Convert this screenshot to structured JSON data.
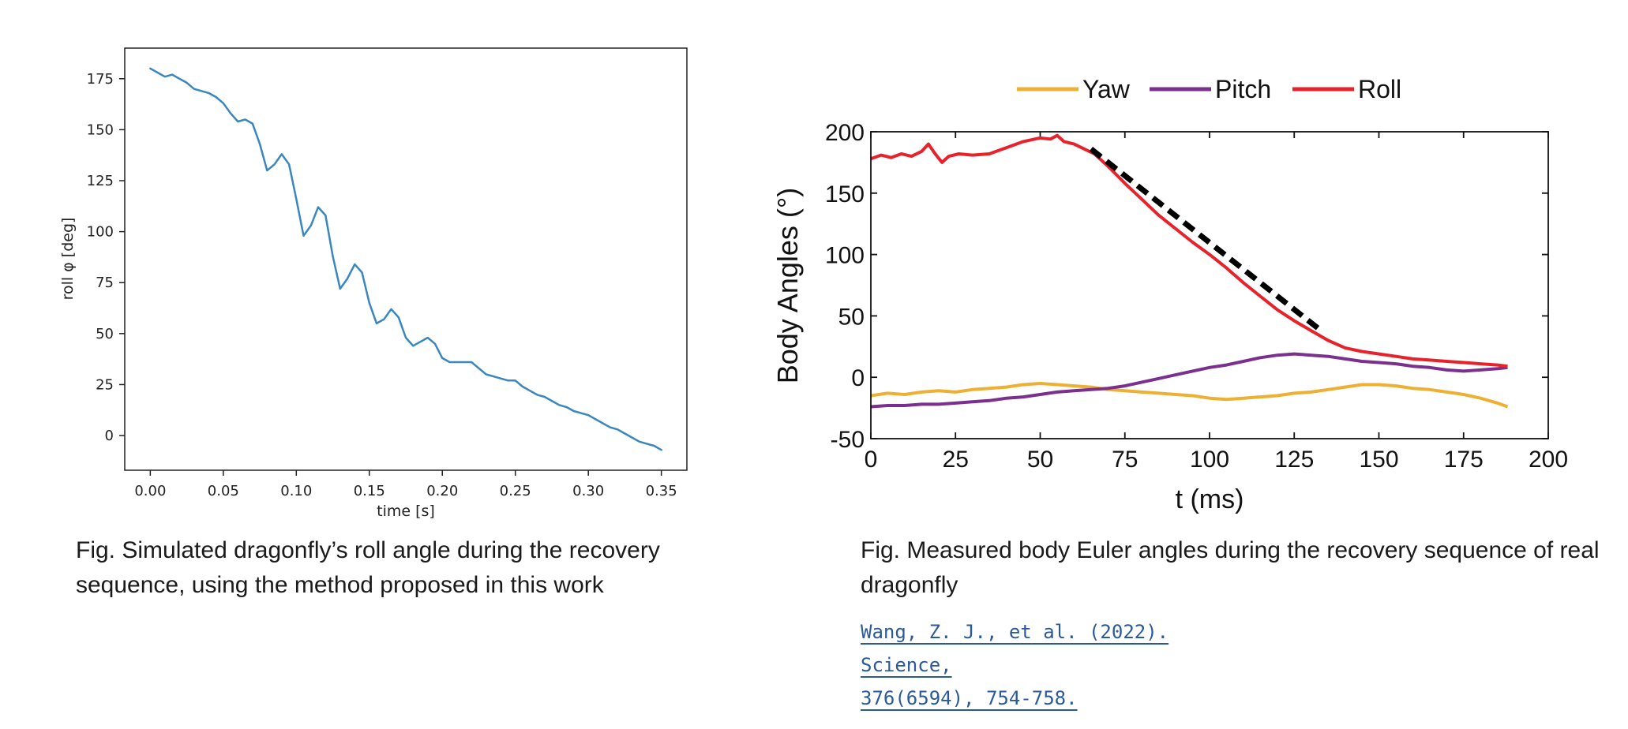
{
  "chart_data": [
    {
      "type": "line",
      "title": "",
      "xlabel": "time [s]",
      "ylabel": "roll φ [deg]",
      "xlim": [
        -0.0175,
        0.3675
      ],
      "ylim": [
        -17,
        190
      ],
      "xticks": [
        "0.00",
        "0.05",
        "0.10",
        "0.15",
        "0.20",
        "0.25",
        "0.30",
        "0.35"
      ],
      "yticks": [
        "0",
        "25",
        "50",
        "75",
        "100",
        "125",
        "150",
        "175"
      ],
      "grid": false,
      "legend": "none",
      "line_color": "#3a87c0",
      "series": [
        {
          "x": [
            0.0,
            0.005,
            0.01,
            0.015,
            0.02,
            0.025,
            0.03,
            0.035,
            0.04,
            0.045,
            0.05,
            0.055,
            0.06,
            0.065,
            0.07,
            0.075,
            0.08,
            0.085,
            0.09,
            0.095,
            0.1,
            0.105,
            0.11,
            0.115,
            0.12,
            0.125,
            0.13,
            0.135,
            0.14,
            0.145,
            0.15,
            0.155,
            0.16,
            0.165,
            0.17,
            0.175,
            0.18,
            0.185,
            0.19,
            0.195,
            0.2,
            0.205,
            0.21,
            0.215,
            0.22,
            0.225,
            0.23,
            0.235,
            0.24,
            0.245,
            0.25,
            0.255,
            0.26,
            0.265,
            0.27,
            0.275,
            0.28,
            0.285,
            0.29,
            0.295,
            0.3,
            0.305,
            0.31,
            0.315,
            0.32,
            0.325,
            0.33,
            0.335,
            0.34,
            0.345,
            0.35
          ],
          "values": [
            180,
            178,
            176,
            177,
            175,
            173,
            170,
            169,
            168,
            166,
            163,
            158,
            154,
            155,
            153,
            143,
            130,
            133,
            138,
            133,
            116,
            98,
            103,
            112,
            108,
            88,
            72,
            77,
            84,
            80,
            65,
            55,
            57,
            62,
            58,
            48,
            44,
            46,
            48,
            45,
            38,
            36,
            36,
            36,
            36,
            33,
            30,
            29,
            28,
            27,
            27,
            24,
            22,
            20,
            19,
            17,
            15,
            14,
            12,
            11,
            10,
            8,
            6,
            4,
            3,
            1,
            -1,
            -3,
            -4,
            -5,
            -7
          ]
        }
      ]
    },
    {
      "type": "line",
      "title": "",
      "xlabel": "t (ms)",
      "ylabel": "Body Angles (°)",
      "xlim": [
        0,
        200
      ],
      "ylim": [
        -50,
        200
      ],
      "xticks": [
        "0",
        "25",
        "50",
        "75",
        "100",
        "125",
        "150",
        "175",
        "200"
      ],
      "yticks": [
        "-50",
        "0",
        "50",
        "100",
        "150",
        "200"
      ],
      "grid": false,
      "legend": "top",
      "series": [
        {
          "name": "Yaw",
          "color": "#eeb033",
          "x": [
            0,
            5,
            10,
            15,
            20,
            25,
            30,
            35,
            40,
            45,
            50,
            55,
            60,
            65,
            70,
            75,
            80,
            85,
            90,
            95,
            100,
            105,
            110,
            115,
            120,
            125,
            130,
            135,
            140,
            145,
            150,
            155,
            160,
            165,
            170,
            175,
            180,
            185,
            188
          ],
          "values": [
            -15,
            -13,
            -14,
            -12,
            -11,
            -12,
            -10,
            -9,
            -8,
            -6,
            -5,
            -6,
            -7,
            -8,
            -10,
            -11,
            -12,
            -13,
            -14,
            -15,
            -17,
            -18,
            -17,
            -16,
            -15,
            -13,
            -12,
            -10,
            -8,
            -6,
            -6,
            -7,
            -9,
            -10,
            -12,
            -14,
            -17,
            -21,
            -24
          ]
        },
        {
          "name": "Pitch",
          "color": "#7b2f8e",
          "x": [
            0,
            5,
            10,
            15,
            20,
            25,
            30,
            35,
            40,
            45,
            50,
            55,
            60,
            65,
            70,
            75,
            80,
            85,
            90,
            95,
            100,
            105,
            110,
            115,
            120,
            125,
            130,
            135,
            140,
            145,
            150,
            155,
            160,
            165,
            170,
            175,
            180,
            185,
            188
          ],
          "values": [
            -24,
            -23,
            -23,
            -22,
            -22,
            -21,
            -20,
            -19,
            -17,
            -16,
            -14,
            -12,
            -11,
            -10,
            -9,
            -7,
            -4,
            -1,
            2,
            5,
            8,
            10,
            13,
            16,
            18,
            19,
            18,
            17,
            15,
            13,
            12,
            11,
            9,
            8,
            6,
            5,
            6,
            7,
            8
          ]
        },
        {
          "name": "Roll",
          "color": "#e8222b",
          "x": [
            0,
            3,
            6,
            9,
            12,
            15,
            17,
            19,
            21,
            23,
            26,
            30,
            35,
            40,
            45,
            50,
            53,
            55,
            57,
            60,
            63,
            66,
            70,
            75,
            80,
            85,
            90,
            95,
            100,
            105,
            110,
            115,
            120,
            125,
            130,
            135,
            140,
            145,
            150,
            155,
            160,
            165,
            170,
            175,
            180,
            185,
            188
          ],
          "values": [
            178,
            181,
            179,
            182,
            180,
            184,
            190,
            182,
            175,
            180,
            182,
            181,
            182,
            187,
            192,
            195,
            194,
            197,
            192,
            190,
            186,
            182,
            172,
            158,
            145,
            132,
            121,
            110,
            100,
            89,
            77,
            66,
            55,
            46,
            38,
            30,
            24,
            21,
            19,
            17,
            15,
            14,
            13,
            12,
            11,
            10,
            9
          ]
        },
        {
          "name": "",
          "color": "#000000",
          "dashed": true,
          "x": [
            65,
            132
          ],
          "values": [
            186,
            40
          ]
        }
      ]
    }
  ],
  "captions": {
    "left": "Fig. Simulated dragonfly’s roll angle during the recovery sequence, using the method proposed in this work",
    "right": "Fig. Measured body Euler angles during the recovery sequence of real dragonfly"
  },
  "citation": {
    "line1": "Wang, Z. J., et al. (2022). Science,",
    "line2": "376(6594), 754-758."
  }
}
